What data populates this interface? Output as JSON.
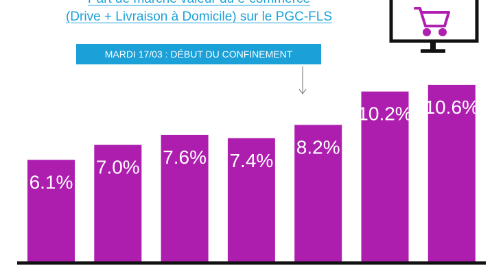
{
  "header": {
    "title_line1": "Part de marché valeur du e-commerce",
    "title_line2": "(Drive + Livraison à Domicile) sur le PGC-FLS",
    "annotation": "MARDI 17/03 : DÉBUT DU CONFINEMENT",
    "icon": "shopping-cart-monitor-icon"
  },
  "colors": {
    "bar": "#ad1eae",
    "accent": "#1ba0d8",
    "axis": "#111111",
    "cart": "#b020b0"
  },
  "chart_data": {
    "type": "bar",
    "categories": [
      "",
      "",
      "",
      "",
      "",
      "",
      ""
    ],
    "values": [
      6.1,
      7.0,
      7.6,
      7.4,
      8.2,
      10.2,
      10.6
    ],
    "value_labels": [
      "6.1%",
      "7.0%",
      "7.6%",
      "7.4%",
      "8.2%",
      "10.2%",
      "10.6%"
    ],
    "ylim": [
      0,
      12
    ],
    "grid": false,
    "annotation_arrow_after_index": 3
  }
}
